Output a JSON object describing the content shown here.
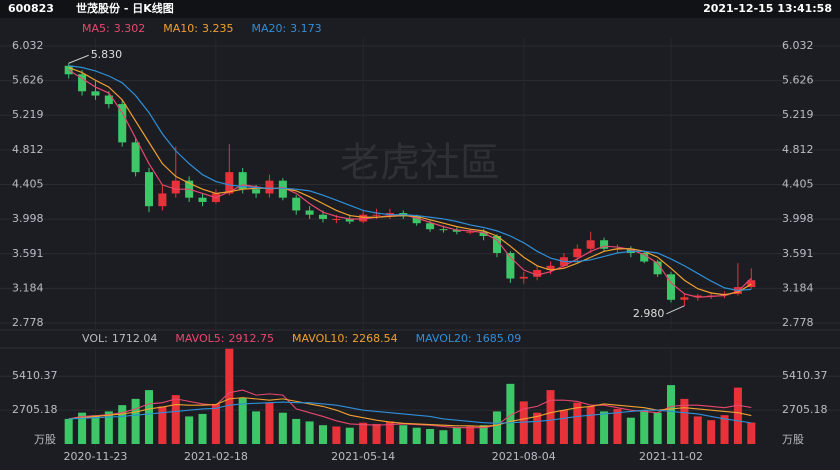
{
  "header": {
    "code": "600823",
    "name": "世茂股份 - 日K线图",
    "time": "2021-12-15 13:41:58"
  },
  "watermark": "老虎社區",
  "chart_data": [
    {
      "type": "candlestick",
      "categories": [
        null,
        null,
        "2020-11-23",
        null,
        null,
        null,
        null,
        null,
        null,
        null,
        null,
        "2021-02-18",
        null,
        null,
        null,
        null,
        null,
        null,
        null,
        null,
        null,
        null,
        "2021-05-14",
        null,
        null,
        null,
        null,
        null,
        null,
        null,
        null,
        null,
        null,
        null,
        "2021-08-04",
        null,
        null,
        null,
        null,
        null,
        null,
        null,
        null,
        null,
        null,
        "2021-11-02",
        null,
        null,
        null,
        null,
        null,
        null
      ],
      "open": [
        5.8,
        5.7,
        5.5,
        5.45,
        5.35,
        4.9,
        4.55,
        4.15,
        4.3,
        4.45,
        4.25,
        4.2,
        4.3,
        4.55,
        4.35,
        4.3,
        4.45,
        4.25,
        4.1,
        4.05,
        4.0,
        4.0,
        3.97,
        4.05,
        4.05,
        4.07,
        4.03,
        3.95,
        3.88,
        3.87,
        3.85,
        3.85,
        3.8,
        3.6,
        3.3,
        3.32,
        3.4,
        3.45,
        3.55,
        3.65,
        3.75,
        3.65,
        3.65,
        3.6,
        3.5,
        3.35,
        3.05,
        3.08,
        3.1,
        3.1,
        3.12,
        3.2
      ],
      "high": [
        5.83,
        5.75,
        5.62,
        5.5,
        5.4,
        4.95,
        4.6,
        4.4,
        4.85,
        4.5,
        4.3,
        4.35,
        4.88,
        4.6,
        4.4,
        4.52,
        4.48,
        4.28,
        4.15,
        4.1,
        4.05,
        4.05,
        4.1,
        4.12,
        4.12,
        4.1,
        4.05,
        3.98,
        3.92,
        3.9,
        3.88,
        3.88,
        3.82,
        3.62,
        3.38,
        3.45,
        3.5,
        3.6,
        3.7,
        3.85,
        3.78,
        3.7,
        3.68,
        3.62,
        3.52,
        3.38,
        3.12,
        3.12,
        3.14,
        3.15,
        3.48,
        3.42
      ],
      "low": [
        5.65,
        5.45,
        5.4,
        5.3,
        4.85,
        4.5,
        4.08,
        4.1,
        4.25,
        4.2,
        4.15,
        4.18,
        4.28,
        4.3,
        4.25,
        4.25,
        4.22,
        4.05,
        4.0,
        3.96,
        3.95,
        3.94,
        3.95,
        4.0,
        4.0,
        4.0,
        3.92,
        3.85,
        3.84,
        3.82,
        3.82,
        3.75,
        3.55,
        3.25,
        3.24,
        3.28,
        3.35,
        3.42,
        3.5,
        3.6,
        3.62,
        3.6,
        3.55,
        3.48,
        3.32,
        3.02,
        2.98,
        3.04,
        3.06,
        3.07,
        3.1,
        3.18
      ],
      "close": [
        5.7,
        5.5,
        5.45,
        5.35,
        4.9,
        4.55,
        4.15,
        4.3,
        4.45,
        4.25,
        4.2,
        4.3,
        4.55,
        4.35,
        4.3,
        4.45,
        4.25,
        4.1,
        4.05,
        4.0,
        4.0,
        3.97,
        4.05,
        4.05,
        4.07,
        4.03,
        3.95,
        3.88,
        3.87,
        3.85,
        3.85,
        3.8,
        3.6,
        3.3,
        3.32,
        3.4,
        3.45,
        3.55,
        3.65,
        3.75,
        3.65,
        3.65,
        3.6,
        3.5,
        3.35,
        3.05,
        3.08,
        3.1,
        3.1,
        3.12,
        3.2,
        3.28
      ],
      "up_color": "#e8323a",
      "down_color": "#3dc768",
      "ylim": [
        2.7,
        6.11
      ],
      "yticks": [
        2.778,
        3.184,
        3.591,
        3.998,
        4.405,
        4.812,
        5.219,
        5.626,
        6.032
      ],
      "annotations": {
        "max": {
          "value": 5.83,
          "label": "5.830"
        },
        "min": {
          "value": 2.98,
          "label": "2.980"
        }
      },
      "series": [
        {
          "name": "MA5:",
          "color": "#e8476f",
          "values": [
            5.75,
            5.65,
            5.55,
            5.48,
            5.25,
            4.95,
            4.65,
            4.4,
            4.35,
            4.35,
            4.3,
            4.25,
            4.32,
            4.4,
            4.38,
            4.35,
            4.37,
            4.3,
            4.18,
            4.08,
            4.03,
            4.0,
            4.0,
            4.02,
            4.04,
            4.05,
            4.01,
            3.96,
            3.91,
            3.87,
            3.86,
            3.84,
            3.75,
            3.55,
            3.4,
            3.34,
            3.38,
            3.45,
            3.53,
            3.62,
            3.68,
            3.67,
            3.64,
            3.58,
            3.48,
            3.25,
            3.12,
            3.08,
            3.09,
            3.1,
            3.15,
            3.302
          ]
        },
        {
          "name": "MA10:",
          "color": "#f0a030",
          "values": [
            5.78,
            5.72,
            5.63,
            5.55,
            5.4,
            5.15,
            4.9,
            4.65,
            4.5,
            4.42,
            4.35,
            4.3,
            4.32,
            4.35,
            4.36,
            4.36,
            4.36,
            4.33,
            4.26,
            4.18,
            4.1,
            4.04,
            4.02,
            4.02,
            4.03,
            4.04,
            4.03,
            3.99,
            3.95,
            3.91,
            3.88,
            3.86,
            3.8,
            3.68,
            3.55,
            3.45,
            3.4,
            3.42,
            3.48,
            3.55,
            3.62,
            3.65,
            3.65,
            3.62,
            3.55,
            3.42,
            3.28,
            3.18,
            3.13,
            3.11,
            3.14,
            3.235
          ]
        },
        {
          "name": "MA20:",
          "color": "#2f8fd8",
          "values": [
            5.8,
            5.78,
            5.74,
            5.68,
            5.6,
            5.45,
            5.25,
            5.0,
            4.8,
            4.65,
            4.52,
            4.44,
            4.4,
            4.38,
            4.37,
            4.36,
            4.36,
            4.35,
            4.33,
            4.28,
            4.22,
            4.16,
            4.1,
            4.07,
            4.05,
            4.05,
            4.04,
            4.02,
            4.0,
            3.97,
            3.93,
            3.9,
            3.86,
            3.8,
            3.72,
            3.62,
            3.54,
            3.5,
            3.5,
            3.52,
            3.56,
            3.6,
            3.62,
            3.62,
            3.6,
            3.53,
            3.45,
            3.36,
            3.27,
            3.19,
            3.16,
            3.173
          ]
        }
      ]
    },
    {
      "type": "bar",
      "name": "VOL:",
      "unit": "万股",
      "values": [
        2000,
        2500,
        2300,
        2600,
        3100,
        3600,
        4300,
        3000,
        3900,
        2200,
        2400,
        3200,
        7600,
        3700,
        2600,
        3300,
        2500,
        2000,
        1800,
        1500,
        1400,
        1300,
        1700,
        1600,
        1800,
        1500,
        1300,
        1200,
        1100,
        1300,
        1400,
        1500,
        2600,
        4800,
        3400,
        2500,
        4300,
        2700,
        3300,
        3000,
        2600,
        2800,
        2100,
        2700,
        2500,
        4700,
        3600,
        2200,
        1900,
        2300,
        4500,
        1712.04
      ],
      "ylim": [
        0,
        7900
      ],
      "yticks": [
        2705.18,
        5410.37
      ],
      "series": [
        {
          "name": "MAVOL5:",
          "color": "#e8476f",
          "values": [
            2000,
            2200,
            2250,
            2350,
            2500,
            2800,
            3200,
            3300,
            3600,
            3400,
            3200,
            3100,
            4100,
            4300,
            3900,
            4000,
            3900,
            2800,
            2500,
            2200,
            1850,
            1600,
            1550,
            1500,
            1550,
            1600,
            1550,
            1500,
            1400,
            1300,
            1300,
            1300,
            1500,
            2300,
            2800,
            3000,
            3500,
            3500,
            3400,
            3100,
            3100,
            2900,
            2700,
            2600,
            2500,
            3000,
            3100,
            3100,
            3000,
            2900,
            3100,
            2912.75
          ]
        },
        {
          "name": "MAVOL10:",
          "color": "#f0a030",
          "values": [
            2000,
            2100,
            2200,
            2300,
            2400,
            2550,
            2800,
            2950,
            3150,
            3100,
            3100,
            3150,
            3600,
            3700,
            3600,
            3500,
            3600,
            3400,
            3200,
            3000,
            2700,
            2300,
            2100,
            1900,
            1750,
            1650,
            1600,
            1550,
            1500,
            1450,
            1450,
            1400,
            1500,
            1800,
            2000,
            2200,
            2500,
            2700,
            2900,
            3000,
            3200,
            3100,
            3000,
            2900,
            2700,
            2800,
            2900,
            2800,
            2700,
            2600,
            2500,
            2268.54
          ]
        },
        {
          "name": "MAVOL20:",
          "color": "#2f8fd8",
          "values": [
            2000,
            2050,
            2100,
            2150,
            2200,
            2300,
            2400,
            2500,
            2600,
            2700,
            2800,
            2850,
            3100,
            3200,
            3250,
            3300,
            3350,
            3300,
            3300,
            3200,
            3100,
            2900,
            2700,
            2600,
            2500,
            2400,
            2300,
            2200,
            2000,
            1900,
            1800,
            1700,
            1650,
            1700,
            1750,
            1800,
            1900,
            2050,
            2200,
            2300,
            2400,
            2500,
            2600,
            2700,
            2700,
            2600,
            2500,
            2400,
            2200,
            2000,
            1850,
            1685.09
          ]
        }
      ]
    }
  ]
}
